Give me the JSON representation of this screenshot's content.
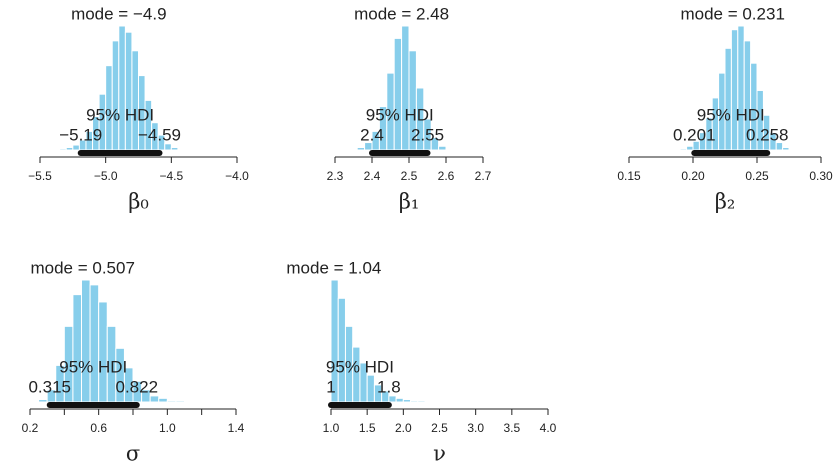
{
  "chart_data": [
    {
      "type": "histogram",
      "mode": -4.9,
      "mode_label": "mode = −4.9",
      "hdi_title": "95% HDI",
      "hdi": [
        -5.19,
        -4.59
      ],
      "hdi_labels": [
        "−5.19",
        "−4.59"
      ],
      "xlabel": "β₀",
      "color": "#87CEEB",
      "bins": [
        -5.35,
        -5.3,
        -5.25,
        -5.2,
        -5.15,
        -5.1,
        -5.05,
        -5.0,
        -4.95,
        -4.9,
        -4.85,
        -4.8,
        -4.75,
        -4.7,
        -4.65,
        -4.6,
        -4.55,
        -4.5,
        -4.45
      ],
      "counts": [
        1,
        2,
        4,
        8,
        15,
        27,
        45,
        68,
        88,
        100,
        95,
        80,
        60,
        40,
        22,
        12,
        5,
        2
      ],
      "xlim": [
        -5.5,
        -4.0
      ],
      "xticks": [
        {
          "value": -5.5,
          "label": "−5.5"
        },
        {
          "value": -5.0,
          "label": "−5.0"
        },
        {
          "value": -4.5,
          "label": "−4.5"
        },
        {
          "value": -4.0,
          "label": "−4.0"
        }
      ]
    },
    {
      "type": "histogram",
      "mode": 2.48,
      "mode_label": "mode = 2.48",
      "hdi_title": "95% HDI",
      "hdi": [
        2.4,
        2.55
      ],
      "hdi_labels": [
        "2.4",
        "2.55"
      ],
      "xlabel": "β₁",
      "color": "#87CEEB",
      "bins": [
        2.36,
        2.38,
        2.4,
        2.42,
        2.44,
        2.46,
        2.48,
        2.5,
        2.52,
        2.54,
        2.56,
        2.58,
        2.6
      ],
      "counts": [
        2,
        6,
        15,
        35,
        62,
        90,
        100,
        80,
        50,
        25,
        10,
        3
      ],
      "xlim": [
        2.3,
        2.7
      ],
      "xticks": [
        2.3,
        2.4,
        2.5,
        2.6,
        2.7
      ]
    },
    {
      "type": "histogram",
      "mode": 0.231,
      "mode_label": "mode = 0.231",
      "hdi_title": "95% HDI",
      "hdi": [
        0.201,
        0.258
      ],
      "hdi_labels": [
        "0.201",
        "0.258"
      ],
      "xlabel": "β₂",
      "color": "#87CEEB",
      "bins": [
        0.19,
        0.195,
        0.2,
        0.205,
        0.21,
        0.215,
        0.22,
        0.225,
        0.23,
        0.235,
        0.24,
        0.245,
        0.25,
        0.255,
        0.26,
        0.265,
        0.27,
        0.275
      ],
      "counts": [
        1,
        3,
        7,
        14,
        26,
        42,
        62,
        82,
        97,
        100,
        88,
        70,
        48,
        28,
        14,
        6,
        2
      ],
      "xlim": [
        0.15,
        0.3
      ],
      "xticks": [
        0.15,
        {
          "value": 0.2,
          "label": "0.20"
        },
        0.25,
        {
          "value": 0.3,
          "label": "0.30"
        }
      ]
    },
    {
      "type": "histogram",
      "mode": 0.507,
      "mode_label": "mode = 0.507",
      "hdi_title": "95% HDI",
      "hdi": [
        0.315,
        0.822
      ],
      "hdi_labels": [
        "0.315",
        "0.822"
      ],
      "xlabel": "σ",
      "color": "#87CEEB",
      "bins": [
        0.25,
        0.3,
        0.35,
        0.4,
        0.45,
        0.5,
        0.55,
        0.6,
        0.65,
        0.7,
        0.75,
        0.8,
        0.85,
        0.9,
        0.95,
        1.0,
        1.05,
        1.1
      ],
      "counts": [
        2,
        10,
        30,
        62,
        88,
        100,
        96,
        82,
        62,
        44,
        28,
        17,
        10,
        5,
        3,
        1,
        1
      ],
      "xlim": [
        0.2,
        1.4
      ],
      "xticks": [
        0.2,
        0.6,
        {
          "value": 1.0,
          "label": "1.0"
        },
        1.4
      ],
      "minor_xticks": [
        0.4,
        0.8,
        1.2
      ]
    },
    {
      "type": "histogram",
      "mode": 1.04,
      "mode_label": "mode = 1.04",
      "hdi_title": "95% HDI",
      "hdi": [
        1,
        1.8
      ],
      "hdi_labels": [
        "1",
        "1.8"
      ],
      "xlabel": "ν",
      "color": "#87CEEB",
      "bins": [
        1.0,
        1.1,
        1.2,
        1.3,
        1.4,
        1.5,
        1.6,
        1.7,
        1.8,
        1.9,
        2.0,
        2.1,
        2.2,
        2.3
      ],
      "counts": [
        100,
        85,
        62,
        45,
        32,
        22,
        14,
        9,
        5,
        3,
        2,
        1,
        1
      ],
      "xlim": [
        1.0,
        4.0
      ],
      "xticks": [
        {
          "value": 1.0,
          "label": "1.0"
        },
        {
          "value": 1.5,
          "label": "1.5"
        },
        {
          "value": 2.0,
          "label": "2.0"
        },
        {
          "value": 2.5,
          "label": "2.5"
        },
        {
          "value": 3.0,
          "label": "3.0"
        },
        {
          "value": 3.5,
          "label": "3.5"
        },
        {
          "value": 4.0,
          "label": "4.0"
        }
      ]
    }
  ]
}
